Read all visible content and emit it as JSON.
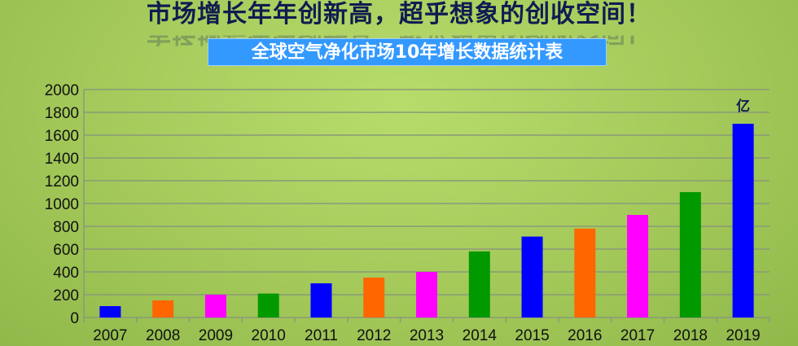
{
  "header": {
    "headline": "市场增长年年创新高，超乎想象的创收空间！"
  },
  "chart_data": {
    "type": "bar",
    "title": "全球空气净化市场10年增长数据统计表",
    "unit_label": "亿",
    "categories": [
      "2007",
      "2008",
      "2009",
      "2010",
      "2011",
      "2012",
      "2013",
      "2014",
      "2015",
      "2016",
      "2017",
      "2018",
      "2019"
    ],
    "values": [
      100,
      150,
      200,
      210,
      300,
      350,
      400,
      580,
      710,
      780,
      900,
      1100,
      1700
    ],
    "colors": [
      "#0000ff",
      "#ff6600",
      "#ff00ff",
      "#009900",
      "#0000ff",
      "#ff6600",
      "#ff00ff",
      "#009900",
      "#0000ff",
      "#ff6600",
      "#ff00ff",
      "#009900",
      "#0000ff"
    ],
    "ylim": [
      0,
      2000
    ],
    "yticks": [
      0,
      200,
      400,
      600,
      800,
      1000,
      1200,
      1400,
      1600,
      1800,
      2000
    ],
    "grid": true,
    "legend": "none"
  }
}
